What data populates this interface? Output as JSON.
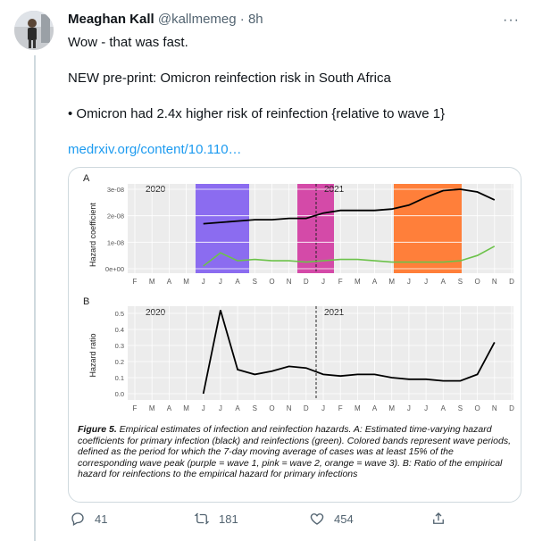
{
  "tweet": {
    "name": "Meaghan Kall",
    "handle": "@kallmemeg",
    "separator": "·",
    "time": "8h",
    "more": "···",
    "lines": [
      "Wow - that was fast.",
      "NEW pre-print: Omicron reinfection risk in South Africa",
      "• Omicron had 2.4x higher risk of reinfection {relative to wave 1}"
    ],
    "link": "medrxiv.org/content/10.110…"
  },
  "figure": {
    "panel_a_label": "A",
    "panel_b_label": "B",
    "year_2020": "2020",
    "year_2021": "2021",
    "ylabel_a": "Hazard coefficient",
    "ylabel_b": "Hazard ratio",
    "yticks_a": [
      "3e-08",
      "2e-08",
      "1e-08",
      "0e+00"
    ],
    "yticks_b": [
      "0.5",
      "0.4",
      "0.3",
      "0.2",
      "0.1",
      "0.0"
    ],
    "months": [
      "F",
      "M",
      "A",
      "M",
      "J",
      "J",
      "A",
      "S",
      "O",
      "N",
      "D",
      "J",
      "F",
      "M",
      "A",
      "M",
      "J",
      "J",
      "A",
      "S",
      "O",
      "N",
      "D"
    ],
    "caption_bold": "Figure 5.",
    "caption_text": " Empirical estimates of infection and reinfection hazards. A: Estimated time-varying hazard coefficients for primary infection (black) and reinfections (green). Colored bands represent wave periods, defined as the period for which the 7-day moving average of cases was at least 15% of the corresponding wave peak (purple = wave 1, pink = wave 2, orange = wave 3). B: Ratio of the empirical hazard for reinfections to the empirical hazard for primary infections",
    "colors": {
      "wave1": "#8b6cf0",
      "wave2": "#d44aa8",
      "wave3": "#ff7f3a",
      "primary": "#000000",
      "reinfection": "#6cc24a"
    }
  },
  "chart_data": [
    {
      "type": "line",
      "title": "",
      "xlabel": "",
      "ylabel": "Hazard coefficient",
      "x": [
        "2020-03",
        "2020-04",
        "2020-05",
        "2020-06",
        "2020-07",
        "2020-08",
        "2020-09",
        "2020-10",
        "2020-11",
        "2020-12",
        "2021-01",
        "2021-02",
        "2021-03",
        "2021-04",
        "2021-05",
        "2021-06",
        "2021-07",
        "2021-08",
        "2021-09",
        "2021-10",
        "2021-11"
      ],
      "ylim": [
        0,
        3.2e-08
      ],
      "series": [
        {
          "name": "primary infection",
          "values": [
            null,
            null,
            null,
            1.7e-08,
            1.75e-08,
            1.8e-08,
            1.85e-08,
            1.85e-08,
            1.9e-08,
            1.9e-08,
            2.1e-08,
            2.2e-08,
            2.2e-08,
            2.2e-08,
            2.25e-08,
            2.4e-08,
            2.7e-08,
            2.95e-08,
            3e-08,
            2.9e-08,
            2.6e-08
          ]
        },
        {
          "name": "reinfection",
          "values": [
            null,
            null,
            null,
            1e-09,
            6e-09,
            3e-09,
            3.5e-09,
            3e-09,
            3e-09,
            2.5e-09,
            3e-09,
            3.5e-09,
            3.5e-09,
            3e-09,
            2.5e-09,
            2.5e-09,
            2.5e-09,
            2.5e-09,
            3e-09,
            5e-09,
            8.5e-09
          ]
        }
      ],
      "bands": [
        {
          "name": "wave 1",
          "from": "2020-06",
          "to": "2020-09"
        },
        {
          "name": "wave 2",
          "from": "2020-12",
          "to": "2021-02"
        },
        {
          "name": "wave 3",
          "from": "2021-05",
          "to": "2021-09"
        }
      ]
    },
    {
      "type": "line",
      "title": "",
      "xlabel": "",
      "ylabel": "Hazard ratio",
      "x": [
        "2020-06",
        "2020-07",
        "2020-08",
        "2020-09",
        "2020-10",
        "2020-11",
        "2020-12",
        "2021-01",
        "2021-02",
        "2021-03",
        "2021-04",
        "2021-05",
        "2021-06",
        "2021-07",
        "2021-08",
        "2021-09",
        "2021-10",
        "2021-11"
      ],
      "ylim": [
        0,
        0.55
      ],
      "series": [
        {
          "name": "",
          "values": [
            0.0,
            0.52,
            0.15,
            0.12,
            0.14,
            0.17,
            0.16,
            0.12,
            0.11,
            0.12,
            0.12,
            0.1,
            0.09,
            0.09,
            0.08,
            0.08,
            0.12,
            0.32
          ]
        }
      ]
    }
  ],
  "actions": {
    "reply_count": "41",
    "retweet_count": "181",
    "like_count": "454"
  }
}
